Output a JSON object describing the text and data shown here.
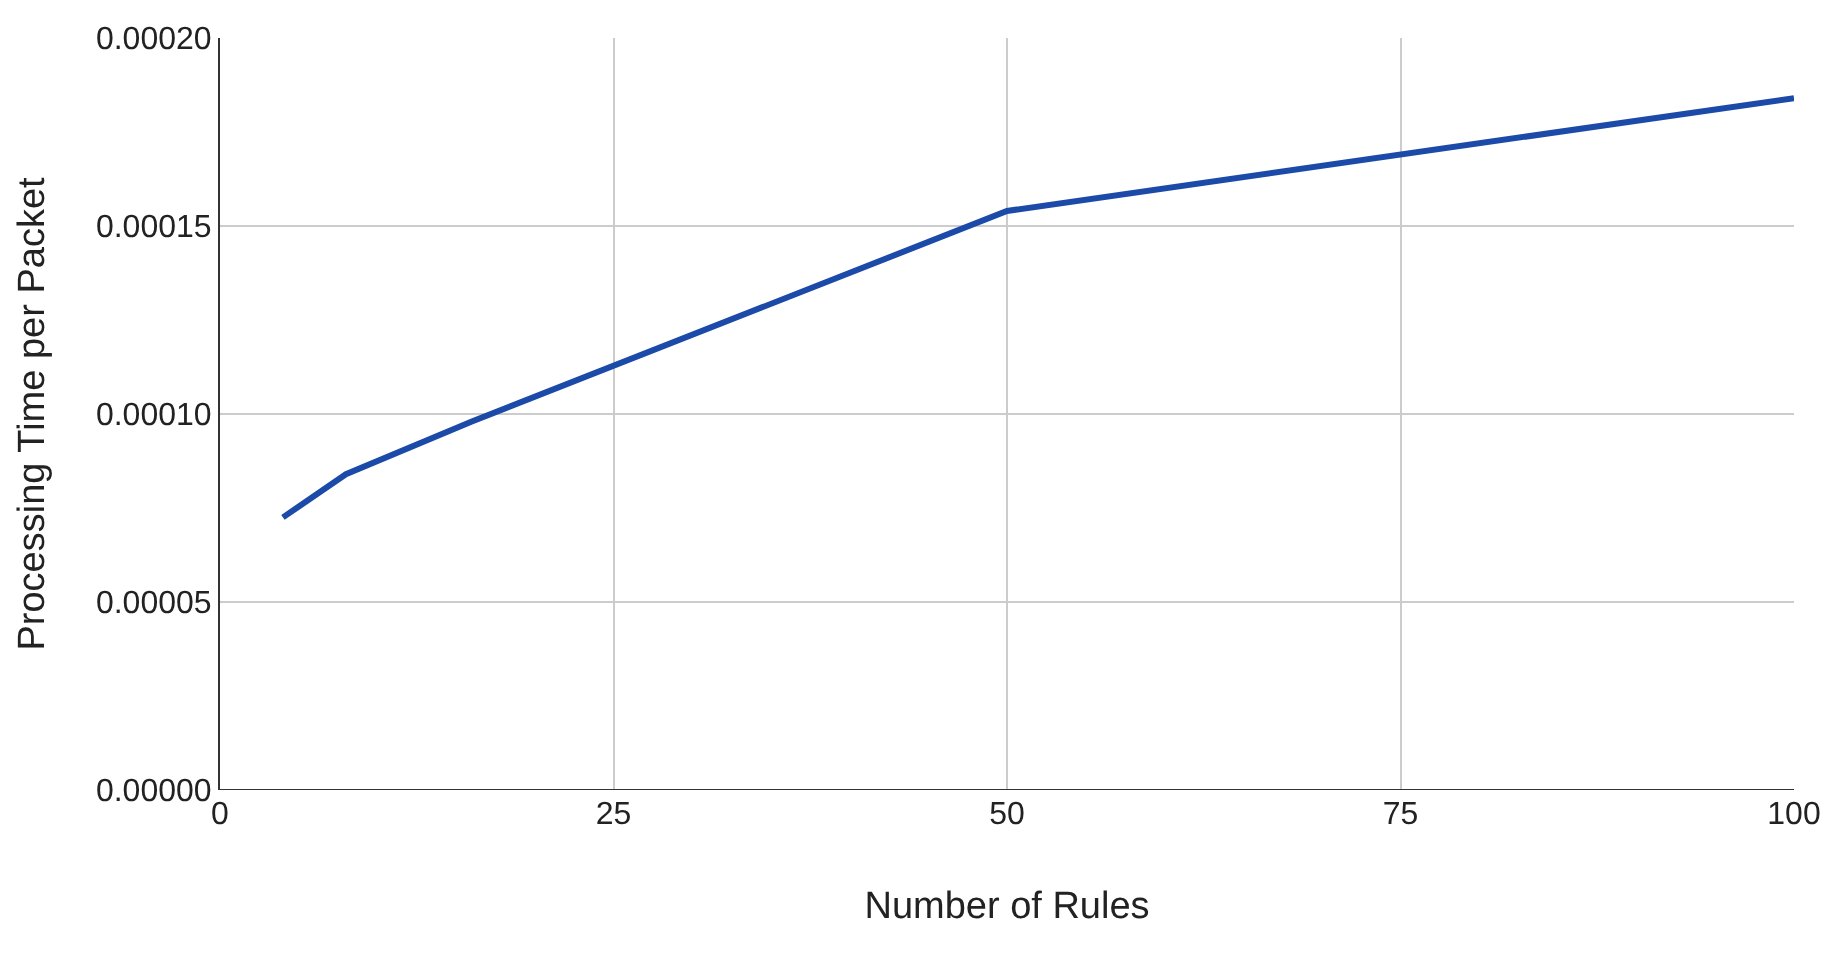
{
  "chart_data": {
    "type": "line",
    "xlabel": "Number of Rules",
    "ylabel": "Processing Time per Packet",
    "x": [
      4,
      8,
      16,
      50,
      100
    ],
    "series": [
      {
        "color": "#1c4aa8",
        "values": [
          7.25e-05,
          8.4e-05,
          9.8e-05,
          0.000154,
          0.000184
        ]
      }
    ],
    "xlim": [
      0,
      100
    ],
    "xticks": [
      0,
      25,
      50,
      75,
      100
    ],
    "ylim": [
      0,
      0.0002
    ],
    "yticks": [
      {
        "value": 0,
        "label": "0.00000"
      },
      {
        "value": 5e-05,
        "label": "0.00005"
      },
      {
        "value": 0.0001,
        "label": "0.00010"
      },
      {
        "value": 0.00015,
        "label": "0.00015"
      },
      {
        "value": 0.0002,
        "label": "0.00020"
      }
    ],
    "grid": true,
    "marker": "none",
    "line_style": "solid"
  }
}
